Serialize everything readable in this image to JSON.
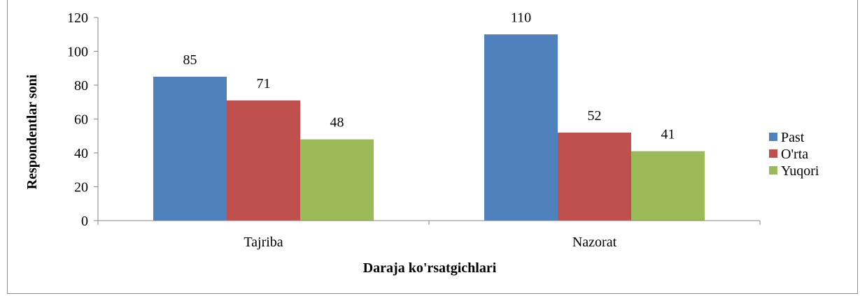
{
  "chart_data": {
    "type": "bar",
    "title": "",
    "categories": [
      "Tajriba",
      "Nazorat"
    ],
    "series": [
      {
        "name": "Past",
        "values": [
          85,
          110
        ],
        "color": "#4f81bd"
      },
      {
        "name": "O'rta",
        "values": [
          71,
          52
        ],
        "color": "#c0504d"
      },
      {
        "name": "Yuqori",
        "values": [
          48,
          41
        ],
        "color": "#9bbb59"
      }
    ],
    "xlabel": "Daraja ko'rsatgichlari",
    "ylabel": "Respondentlar soni",
    "ylim": [
      0,
      120
    ],
    "yticks": [
      0,
      20,
      40,
      60,
      80,
      100,
      120
    ],
    "legend_position": "right",
    "grid": false
  }
}
